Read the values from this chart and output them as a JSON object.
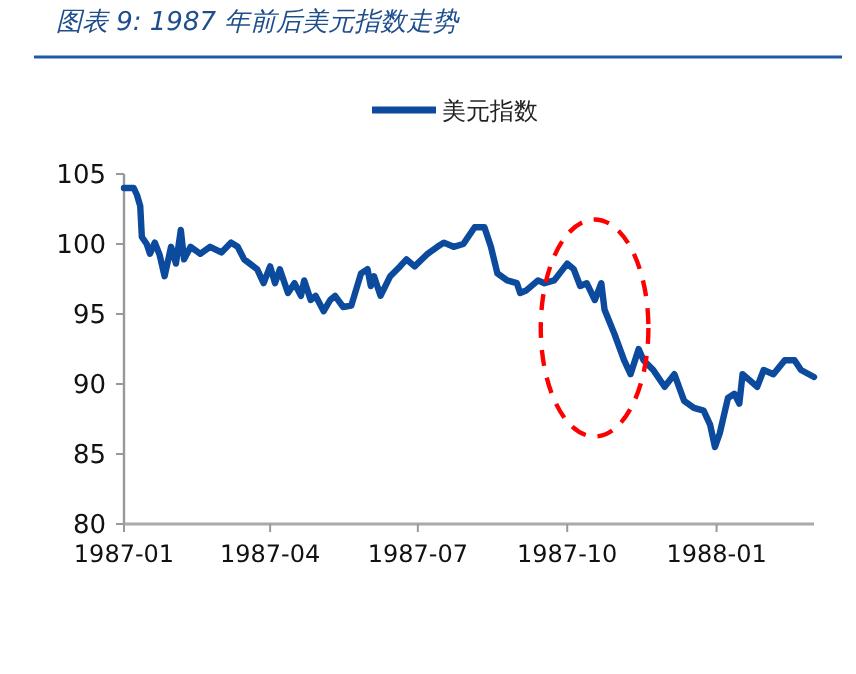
{
  "chart_data": {
    "type": "line",
    "title": "图表 9:  1987 年前后美元指数走势",
    "x": [
      "1987-01-01",
      "1987-01-07",
      "1987-01-09",
      "1987-01-11",
      "1987-01-12",
      "1987-01-15",
      "1987-01-17",
      "1987-01-20",
      "1987-01-23",
      "1987-01-26",
      "1987-01-30",
      "1987-02-02",
      "1987-02-05",
      "1987-02-07",
      "1987-02-11",
      "1987-02-17",
      "1987-02-23",
      "1987-03-02",
      "1987-03-08",
      "1987-03-12",
      "1987-03-16",
      "1987-03-24",
      "1987-03-28",
      "1987-04-01",
      "1987-04-04",
      "1987-04-07",
      "1987-04-12",
      "1987-04-16",
      "1987-04-20",
      "1987-04-22",
      "1987-04-26",
      "1987-04-29",
      "1987-05-04",
      "1987-05-08",
      "1987-05-11",
      "1987-05-16",
      "1987-05-21",
      "1987-05-27",
      "1987-05-31",
      "1987-06-02",
      "1987-06-04",
      "1987-06-08",
      "1987-06-14",
      "1987-06-20",
      "1987-06-24",
      "1987-06-29",
      "1987-07-07",
      "1987-07-13",
      "1987-07-17",
      "1987-07-23",
      "1987-07-29",
      "1987-08-05",
      "1987-08-11",
      "1987-08-15",
      "1987-08-19",
      "1987-08-25",
      "1987-08-31",
      "1987-09-02",
      "1987-09-06",
      "1987-09-13",
      "1987-09-17",
      "1987-09-23",
      "1987-10-01",
      "1987-10-05",
      "1987-10-09",
      "1987-10-13",
      "1987-10-18",
      "1987-10-22",
      "1987-10-24",
      "1987-10-30",
      "1987-11-05",
      "1987-11-09",
      "1987-11-14",
      "1987-11-17",
      "1987-11-23",
      "1987-11-30",
      "1987-12-06",
      "1987-12-12",
      "1987-12-18",
      "1987-12-24",
      "1987-12-28",
      "1987-12-31",
      "1988-01-03",
      "1988-01-08",
      "1988-01-12",
      "1988-01-15",
      "1988-01-17",
      "1988-01-22",
      "1988-01-26",
      "1988-01-30",
      "1988-02-05",
      "1988-02-12",
      "1988-02-18",
      "1988-02-22",
      "1988-03-01"
    ],
    "series": [
      {
        "name": "美元指数",
        "color": "#0b4a9c",
        "values": [
          104,
          104,
          103.5,
          102.7,
          100.5,
          100,
          99.3,
          100.1,
          99.2,
          97.7,
          99.8,
          98.6,
          101,
          98.9,
          99.8,
          99.3,
          99.8,
          99.4,
          100.1,
          99.8,
          98.9,
          98.2,
          97.2,
          98.4,
          97.2,
          98.2,
          96.5,
          97.2,
          96.3,
          97.4,
          96,
          96.3,
          95.2,
          96,
          96.3,
          95.5,
          95.6,
          97.9,
          98.2,
          97,
          97.7,
          96.3,
          97.7,
          98.4,
          98.9,
          98.4,
          99.3,
          99.8,
          100.1,
          99.8,
          100,
          101.2,
          101.2,
          99.8,
          97.9,
          97.4,
          97.2,
          96.5,
          96.7,
          97.4,
          97.2,
          97.4,
          98.6,
          98.2,
          97,
          97.2,
          96,
          97.2,
          95.3,
          93.6,
          91.7,
          90.7,
          92.5,
          91.7,
          91,
          89.8,
          90.7,
          88.8,
          88.3,
          88.1,
          87.1,
          85.5,
          86.5,
          89,
          89.3,
          88.6,
          90.7,
          90.2,
          89.8,
          91,
          90.7,
          91.7,
          91.7,
          91,
          90.5
        ]
      }
    ],
    "xlim": [
      "1987-01-01",
      "1988-03-01"
    ],
    "xticks": [
      {
        "value": "1987-01-01",
        "label": "1987-01"
      },
      {
        "value": "1987-04-01",
        "label": "1987-04"
      },
      {
        "value": "1987-07-01",
        "label": "1987-07"
      },
      {
        "value": "1987-10-01",
        "label": "1987-10"
      },
      {
        "value": "1988-01-01",
        "label": "1988-01"
      }
    ],
    "ylim": [
      80,
      105
    ],
    "yticks": [
      80,
      85,
      90,
      95,
      100,
      105
    ],
    "legend": "top",
    "grid": false,
    "marker": "none",
    "line_style": "solid"
  }
}
